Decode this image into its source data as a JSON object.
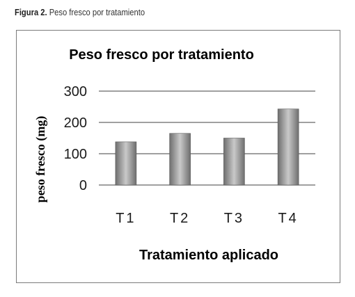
{
  "figure_caption": {
    "label": "Figura 2.",
    "text": "Peso fresco por tratamiento"
  },
  "chart_data": {
    "type": "bar",
    "title": "Peso fresco por tratamiento",
    "xlabel": "Tratamiento aplicado",
    "ylabel": "peso fresco (mg)",
    "categories": [
      "T1",
      "T2",
      "T3",
      "T4"
    ],
    "values": [
      138,
      165,
      150,
      243
    ],
    "ylim": [
      0,
      300
    ],
    "yticks": [
      0,
      100,
      200,
      300
    ],
    "grid": true,
    "legend": "none",
    "colors": {
      "bar_dark": "#6e6e6e",
      "bar_light": "#c9c9c9",
      "gridline": "#808080",
      "text": "#1a1a1a"
    }
  }
}
